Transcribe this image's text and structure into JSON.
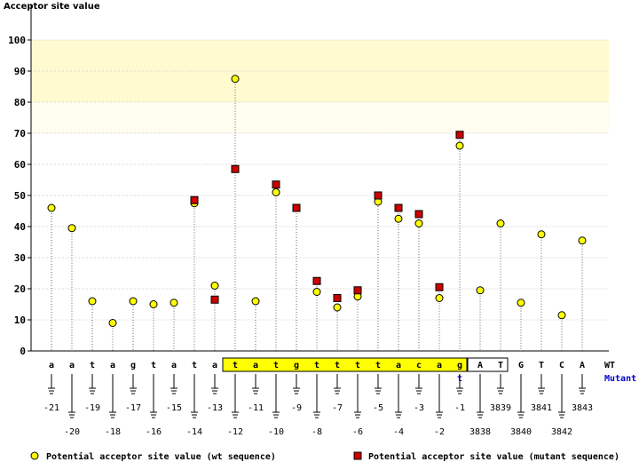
{
  "chart_data": {
    "type": "scatter",
    "title": "Acceptor site value",
    "ylim": [
      0,
      100
    ],
    "yticks": [
      0,
      10,
      20,
      30,
      40,
      50,
      60,
      70,
      80,
      90,
      100
    ],
    "row_labels": {
      "wt": "WT",
      "mutant": "Mutant"
    },
    "categories": [
      {
        "base": "a",
        "pos": "-21",
        "wt": 46
      },
      {
        "base": "a",
        "pos": "-20",
        "wt": 39.5
      },
      {
        "base": "t",
        "pos": "-19",
        "wt": 16
      },
      {
        "base": "a",
        "pos": "-18",
        "wt": 9
      },
      {
        "base": "g",
        "pos": "-17",
        "wt": 16
      },
      {
        "base": "t",
        "pos": "-16",
        "wt": 15
      },
      {
        "base": "a",
        "pos": "-15",
        "wt": 15.5
      },
      {
        "base": "t",
        "pos": "-14",
        "wt": 47.5,
        "mutant": 48.5
      },
      {
        "base": "a",
        "pos": "-13",
        "wt": 21,
        "mutant": 16.5
      },
      {
        "base": "t",
        "pos": "-12",
        "wt": 87.5,
        "mutant": 58.5
      },
      {
        "base": "a",
        "pos": "-11",
        "wt": 16
      },
      {
        "base": "t",
        "pos": "-10",
        "wt": 51,
        "mutant": 53.5
      },
      {
        "base": "g",
        "pos": "-9",
        "wt": 46,
        "mutant": 46
      },
      {
        "base": "t",
        "pos": "-8",
        "wt": 19,
        "mutant": 22.5
      },
      {
        "base": "t",
        "pos": "-7",
        "wt": 14,
        "mutant": 17
      },
      {
        "base": "t",
        "pos": "-6",
        "wt": 17.5,
        "mutant": 19.5
      },
      {
        "base": "t",
        "pos": "-5",
        "wt": 48,
        "mutant": 50
      },
      {
        "base": "a",
        "pos": "-4",
        "wt": 42.5,
        "mutant": 46
      },
      {
        "base": "c",
        "pos": "-3",
        "wt": 41,
        "mutant": 44
      },
      {
        "base": "a",
        "pos": "-2",
        "wt": 17,
        "mutant": 20.5
      },
      {
        "base": "g",
        "pos": "-1",
        "wt": 66,
        "mutant": 69.5,
        "mutant_base": "t"
      },
      {
        "base": "A",
        "pos": "3838",
        "wt": 19.5
      },
      {
        "base": "T",
        "pos": "3839",
        "wt": 41
      },
      {
        "base": "G",
        "pos": "3840",
        "wt": 15.5
      },
      {
        "base": "T",
        "pos": "3841",
        "wt": 37.5
      },
      {
        "base": "C",
        "pos": "3842",
        "wt": 11.5
      },
      {
        "base": "A",
        "pos": "3843",
        "wt": 35.5
      }
    ],
    "series": [
      {
        "name": "Potential acceptor site value (wt sequence)",
        "key": "wt",
        "marker": "circle",
        "color": "#ffff00"
      },
      {
        "name": "Potential acceptor site value (mutant sequence)",
        "key": "mutant",
        "marker": "square",
        "color": "#cc0000"
      }
    ],
    "highlight_bands": [
      {
        "from": 80,
        "to": 100,
        "color": "#fffad0"
      },
      {
        "from": 70,
        "to": 80,
        "color": "#fffdf0"
      }
    ],
    "colors": {
      "band_strong": "#fffad0",
      "band_light": "#fffdf0",
      "grid": "#cccccc",
      "intron_box": "#ffff00",
      "mutant_text": "#0000cc"
    },
    "grid": true,
    "legend": "bottom"
  }
}
